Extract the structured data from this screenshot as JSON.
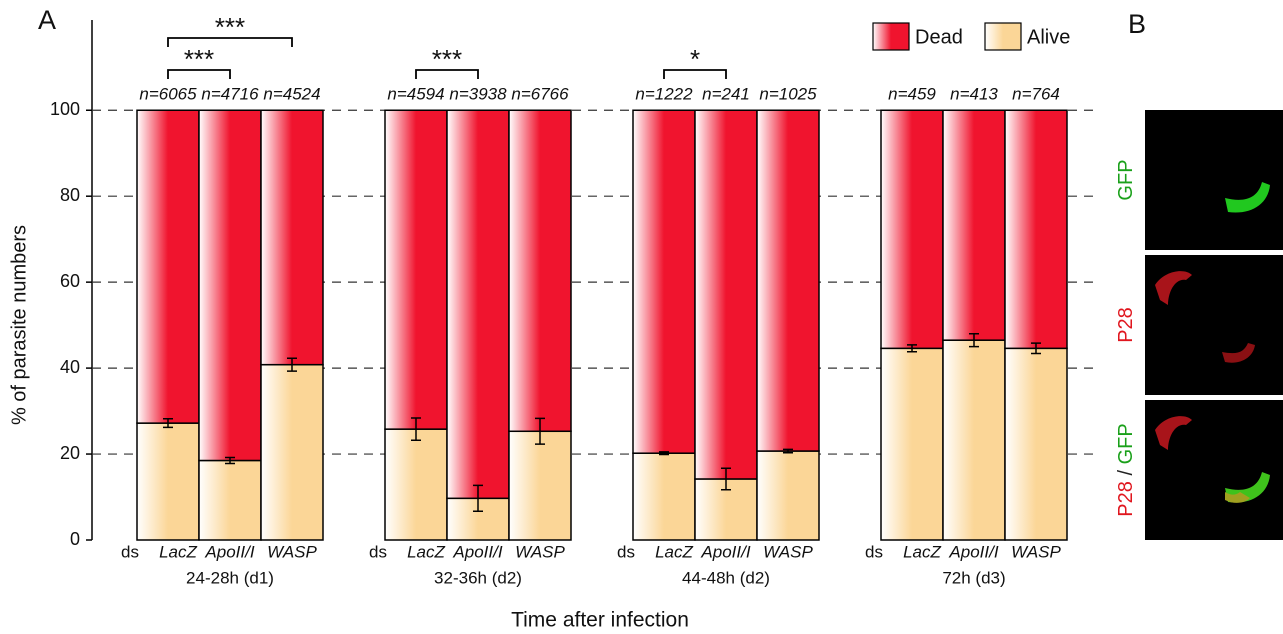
{
  "chart_data": {
    "type": "bar",
    "stacked": true,
    "panel_label": "A",
    "ylabel": "% of parasite numbers",
    "xlabel": "Time after infection",
    "ylim": [
      0,
      121
    ],
    "yticks": [
      0,
      20,
      40,
      60,
      80,
      100
    ],
    "grid": "dashed",
    "legend": "upper right",
    "category_prefix": "ds",
    "groups": [
      {
        "label": "24-28h (d1)",
        "categories": [
          "LacZ",
          "ApoII/I",
          "WASP"
        ],
        "n": [
          "n=6065",
          "n=4716",
          "n=4524"
        ]
      },
      {
        "label": "32-36h (d2)",
        "categories": [
          "LacZ",
          "ApoII/I",
          "WASP"
        ],
        "n": [
          "n=4594",
          "n=3938",
          "n=6766"
        ]
      },
      {
        "label": "44-48h (d2)",
        "categories": [
          "LacZ",
          "ApoII/I",
          "WASP"
        ],
        "n": [
          "n=1222",
          "n=241",
          "n=1025"
        ]
      },
      {
        "label": "72h (d3)",
        "categories": [
          "LacZ",
          "ApoII/I",
          "WASP"
        ],
        "n": [
          "n=459",
          "n=413",
          "n=764"
        ]
      }
    ],
    "series": [
      {
        "name": "Dead",
        "color": "#f0142e",
        "values": [
          72.8,
          81.5,
          59.2,
          74.2,
          90.3,
          74.7,
          79.8,
          85.8,
          79.3,
          55.4,
          53.5,
          55.4
        ]
      },
      {
        "name": "Alive",
        "color": "#fbd697",
        "values": [
          27.2,
          18.5,
          40.8,
          25.8,
          9.7,
          25.3,
          20.2,
          14.2,
          20.7,
          44.6,
          46.5,
          44.6
        ],
        "errors": [
          1.0,
          0.7,
          1.5,
          2.6,
          3.0,
          3.0,
          0.3,
          2.5,
          0.4,
          0.8,
          1.5,
          1.2
        ]
      }
    ],
    "significance": [
      {
        "label": "***",
        "group": 0,
        "bars": [
          0,
          1
        ]
      },
      {
        "label": "***",
        "group": 0,
        "bars": [
          0,
          2
        ]
      },
      {
        "label": "***",
        "group": 1,
        "bars": [
          0,
          1
        ]
      },
      {
        "label": "*",
        "group": 2,
        "bars": [
          0,
          1
        ]
      }
    ]
  },
  "panel_b": {
    "label": "B",
    "images": [
      {
        "label": [
          "GFP"
        ],
        "colors": [
          "#1aa01a"
        ]
      },
      {
        "label": [
          "P28"
        ],
        "colors": [
          "#e0161e"
        ]
      },
      {
        "label": [
          "P28",
          "/",
          "GFP"
        ],
        "colors": [
          "#e0161e",
          "#222222",
          "#1aa01a"
        ]
      }
    ]
  }
}
